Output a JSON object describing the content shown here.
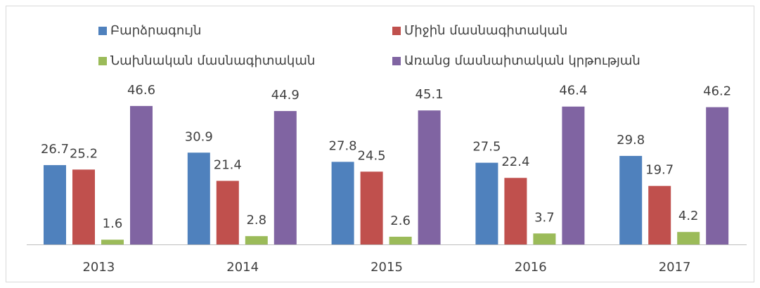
{
  "chart_data": {
    "type": "bar",
    "categories": [
      "2013",
      "2014",
      "2015",
      "2016",
      "2017"
    ],
    "series": [
      {
        "name": "Բարձրագույն",
        "color": "#4f81bd",
        "values": [
          26.7,
          30.9,
          27.8,
          27.5,
          29.8
        ]
      },
      {
        "name": "Միջին մասնագիտական",
        "color": "#c0504d",
        "values": [
          25.2,
          21.4,
          24.5,
          22.4,
          19.7
        ]
      },
      {
        "name": "Նախնական մասնագիտական",
        "color": "#9bbb59",
        "values": [
          1.6,
          2.8,
          2.6,
          3.7,
          4.2
        ]
      },
      {
        "name": "Առանց մասնաիտական կրթության",
        "color": "#8064a2",
        "values": [
          46.6,
          44.9,
          45.1,
          46.4,
          46.2
        ]
      }
    ],
    "ylim": [
      0,
      50
    ],
    "legend": "top"
  }
}
